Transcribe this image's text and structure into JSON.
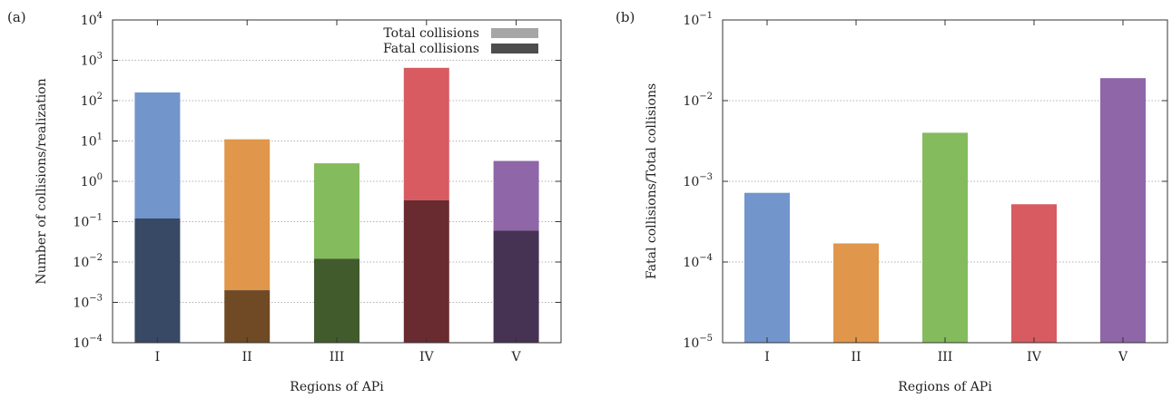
{
  "chart_data": [
    {
      "panel": "(a)",
      "type": "bar",
      "yscale": "log",
      "ylim": [
        0.0001,
        10000
      ],
      "ylabel": "Number of collisions/realization",
      "xlabel": "Regions of APi",
      "categories": [
        "I",
        "II",
        "III",
        "IV",
        "V"
      ],
      "yticks": [
        {
          "base": "10",
          "exp": "4",
          "v": 10000
        },
        {
          "base": "10",
          "exp": "3",
          "v": 1000
        },
        {
          "base": "10",
          "exp": "2",
          "v": 100
        },
        {
          "base": "10",
          "exp": "1",
          "v": 10
        },
        {
          "base": "10",
          "exp": "0",
          "v": 1
        },
        {
          "base": "10",
          "exp": "−1",
          "v": 0.1
        },
        {
          "base": "10",
          "exp": "−2",
          "v": 0.01
        },
        {
          "base": "10",
          "exp": "−3",
          "v": 0.001
        },
        {
          "base": "10",
          "exp": "−4",
          "v": 0.0001
        }
      ],
      "series": [
        {
          "name": "Total collisions",
          "values": [
            160,
            11,
            2.8,
            650,
            3.2
          ],
          "legend_color": "#a6a6a6"
        },
        {
          "name": "Fatal collisions",
          "values": [
            0.12,
            0.002,
            0.012,
            0.34,
            0.06
          ],
          "legend_color": "#4d4d4d"
        }
      ],
      "bar_colors": [
        "#7295cc",
        "#e0964b",
        "#84bb5d",
        "#d75b61",
        "#8f66a8"
      ],
      "dark_colors": [
        "#384966",
        "#6f4a24",
        "#415b2d",
        "#6a2b30",
        "#463253"
      ],
      "legend_placement": "top-right",
      "grid": "horizontal dotted"
    },
    {
      "panel": "(b)",
      "type": "bar",
      "yscale": "log",
      "ylim": [
        1e-05,
        0.1
      ],
      "ylabel": "Fatal collisions/Total collisions",
      "xlabel": "Regions of APi",
      "categories": [
        "I",
        "II",
        "III",
        "IV",
        "V"
      ],
      "yticks": [
        {
          "base": "10",
          "exp": "−1",
          "v": 0.1
        },
        {
          "base": "10",
          "exp": "−2",
          "v": 0.01
        },
        {
          "base": "10",
          "exp": "−3",
          "v": 0.001
        },
        {
          "base": "10",
          "exp": "−4",
          "v": 0.0001
        },
        {
          "base": "10",
          "exp": "−5",
          "v": 1e-05
        }
      ],
      "values": [
        0.00072,
        0.00017,
        0.004,
        0.00052,
        0.019
      ],
      "bar_colors": [
        "#7295cc",
        "#e0964b",
        "#84bb5d",
        "#d75b61",
        "#8f66a8"
      ],
      "grid": "horizontal dotted"
    }
  ]
}
